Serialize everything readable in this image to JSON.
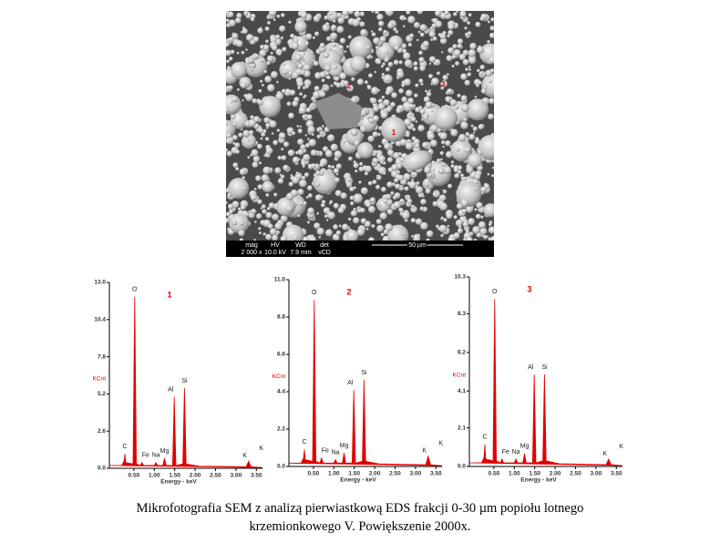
{
  "sem": {
    "marker_labels": [
      "1",
      "2",
      "3"
    ],
    "info_headers": [
      "mag",
      "HV",
      "WD",
      "det"
    ],
    "info_values": [
      "2 000 x",
      "10.0 kV",
      "7.9 mm",
      "vCD"
    ],
    "scale_bar": "50 µm"
  },
  "chart_data": [
    {
      "type": "area",
      "title": "1",
      "y_label": "KCnt",
      "x_label": "Energy - keV",
      "color": "#e00000",
      "peak_labels": [
        "C",
        "O",
        "Fe",
        "Na",
        "Mg",
        "Al",
        "Si",
        "K",
        "K"
      ],
      "x": [
        -0.1,
        0.2,
        0.26,
        0.28,
        0.3,
        0.48,
        0.52,
        0.56,
        0.66,
        0.7,
        0.74,
        1.0,
        1.04,
        1.08,
        1.21,
        1.25,
        1.29,
        1.45,
        1.49,
        1.53,
        1.7,
        1.74,
        1.78,
        2.1,
        3.25,
        3.31,
        3.37,
        3.65
      ],
      "values": [
        0.2,
        0.2,
        0.5,
        1.0,
        0.4,
        0.3,
        12.0,
        0.3,
        0.2,
        0.4,
        0.2,
        0.2,
        0.4,
        0.2,
        0.2,
        0.7,
        0.2,
        0.2,
        5.0,
        0.2,
        0.3,
        5.6,
        0.3,
        0.15,
        0.1,
        0.5,
        0.1,
        0.05
      ],
      "xlim": [
        -0.1,
        3.65
      ],
      "ylim": [
        0,
        13
      ],
      "xticks": [
        {
          "value": 0.5,
          "label": "0.50"
        },
        {
          "value": 1.0,
          "label": "1.00"
        },
        {
          "value": 1.5,
          "label": "1.50"
        },
        {
          "value": 2.0,
          "label": "2.00"
        },
        {
          "value": 2.5,
          "label": "2.50"
        },
        {
          "value": 3.0,
          "label": "3.00"
        },
        {
          "value": 3.5,
          "label": "3.50"
        }
      ],
      "yticks": [
        {
          "value": 0,
          "label": "0.0"
        },
        2.6,
        5.2,
        7.8,
        10.4,
        {
          "value": 13,
          "label": "13.0"
        }
      ]
    },
    {
      "type": "area",
      "title": "2",
      "y_label": "KCnt",
      "x_label": "Energy - keV",
      "color": "#e00000",
      "peak_labels": [
        "C",
        "O",
        "Fe",
        "Na",
        "Mg",
        "Al",
        "Si",
        "K",
        "K"
      ],
      "x": [
        -0.1,
        0.2,
        0.26,
        0.28,
        0.3,
        0.48,
        0.52,
        0.56,
        0.66,
        0.7,
        0.74,
        1.0,
        1.04,
        1.08,
        1.21,
        1.25,
        1.29,
        1.45,
        1.49,
        1.53,
        1.7,
        1.74,
        1.78,
        2.1,
        3.25,
        3.31,
        3.37,
        3.65
      ],
      "values": [
        0.2,
        0.2,
        0.5,
        1.0,
        0.4,
        0.3,
        9.8,
        0.3,
        0.2,
        0.5,
        0.2,
        0.2,
        0.4,
        0.2,
        0.2,
        0.8,
        0.2,
        0.2,
        4.5,
        0.2,
        0.3,
        5.1,
        0.3,
        0.15,
        0.1,
        0.6,
        0.1,
        0.05
      ],
      "xlim": [
        -0.1,
        3.65
      ],
      "ylim": [
        0,
        11
      ],
      "xticks": [
        {
          "value": 0.5,
          "label": "0.50"
        },
        {
          "value": 1.0,
          "label": "1.00"
        },
        {
          "value": 1.5,
          "label": "1.50"
        },
        {
          "value": 2.0,
          "label": "2.00"
        },
        {
          "value": 2.5,
          "label": "2.50"
        },
        {
          "value": 3.0,
          "label": "3.00"
        },
        {
          "value": 3.5,
          "label": "3.50"
        }
      ],
      "yticks": [
        {
          "value": 0,
          "label": "0.0"
        },
        2.2,
        4.4,
        6.6,
        8.8,
        {
          "value": 11,
          "label": "11.0"
        }
      ]
    },
    {
      "type": "area",
      "title": "3",
      "y_label": "KCnt",
      "x_label": "Energy - keV",
      "color": "#e00000",
      "peak_labels": [
        "C",
        "O",
        "Fe",
        "Na",
        "Mg",
        "Al",
        "Si",
        "K",
        "K"
      ],
      "x": [
        -0.1,
        0.2,
        0.26,
        0.28,
        0.3,
        0.48,
        0.52,
        0.56,
        0.66,
        0.7,
        0.74,
        1.0,
        1.04,
        1.08,
        1.21,
        1.25,
        1.29,
        1.45,
        1.49,
        1.53,
        1.7,
        1.74,
        1.78,
        2.1,
        3.25,
        3.31,
        3.37,
        3.65
      ],
      "values": [
        0.2,
        0.2,
        0.5,
        1.2,
        0.4,
        0.3,
        9.1,
        0.3,
        0.2,
        0.4,
        0.2,
        0.2,
        0.4,
        0.2,
        0.2,
        0.7,
        0.2,
        0.2,
        5.0,
        0.2,
        0.3,
        5.0,
        0.3,
        0.15,
        0.1,
        0.4,
        0.1,
        0.05
      ],
      "xlim": [
        -0.1,
        3.65
      ],
      "ylim": [
        0,
        10.3
      ],
      "xticks": [
        {
          "value": 0.5,
          "label": "0.50"
        },
        {
          "value": 1.0,
          "label": "1.00"
        },
        {
          "value": 1.5,
          "label": "1.50"
        },
        {
          "value": 2.0,
          "label": "2.00"
        },
        {
          "value": 2.5,
          "label": "2.50"
        },
        {
          "value": 3.0,
          "label": "3.00"
        },
        {
          "value": 3.5,
          "label": "3.50"
        }
      ],
      "yticks": [
        {
          "value": 0,
          "label": "0.0"
        },
        2.1,
        4.1,
        6.2,
        8.3,
        {
          "value": 10.3,
          "label": "10.3"
        }
      ]
    }
  ],
  "caption": [
    "Mikrofotografia SEM z analizą pierwiastkową EDS frakcji 0-30 µm popiołu lotnego",
    "krzemionkowego V. Powiększenie 2000x."
  ]
}
